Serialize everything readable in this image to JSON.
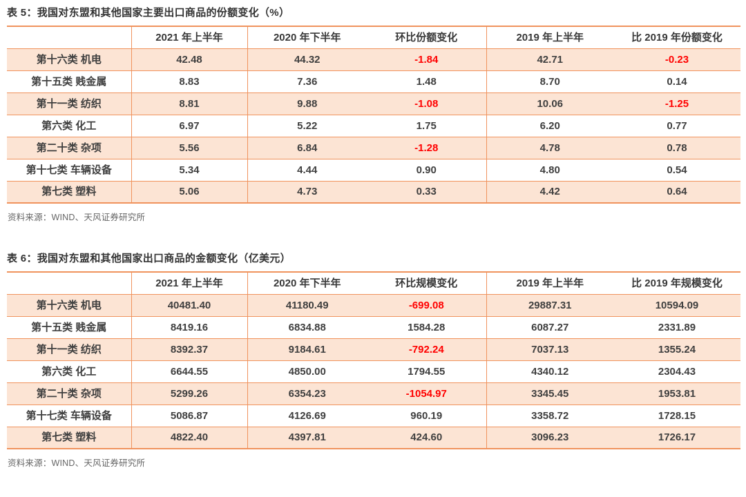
{
  "colors": {
    "table_border": "#F0925C",
    "row_shade": "#FCE4D4",
    "negative_value": "#FF0000",
    "text": "#3F3F3F"
  },
  "tables": [
    {
      "title": "表 5：我国对东盟和其他国家主要出口商品的份额变化（%）",
      "source": "资料来源：WIND、天风证券研究所",
      "columns": [
        "",
        "2021 年上半年",
        "2020 年下半年",
        "环比份额变化",
        "2019 年上半年",
        "比 2019 年份额变化"
      ],
      "rows": [
        {
          "label": "第十六类 机电",
          "values": [
            "42.48",
            "44.32",
            "-1.84",
            "42.71",
            "-0.23"
          ]
        },
        {
          "label": "第十五类 贱金属",
          "values": [
            "8.83",
            "7.36",
            "1.48",
            "8.70",
            "0.14"
          ]
        },
        {
          "label": "第十一类 纺织",
          "values": [
            "8.81",
            "9.88",
            "-1.08",
            "10.06",
            "-1.25"
          ]
        },
        {
          "label": "第六类 化工",
          "values": [
            "6.97",
            "5.22",
            "1.75",
            "6.20",
            "0.77"
          ]
        },
        {
          "label": "第二十类 杂项",
          "values": [
            "5.56",
            "6.84",
            "-1.28",
            "4.78",
            "0.78"
          ]
        },
        {
          "label": "第十七类 车辆设备",
          "values": [
            "5.34",
            "4.44",
            "0.90",
            "4.80",
            "0.54"
          ]
        },
        {
          "label": "第七类 塑料",
          "values": [
            "5.06",
            "4.73",
            "0.33",
            "4.42",
            "0.64"
          ]
        }
      ]
    },
    {
      "title": "表 6：我国对东盟和其他国家出口商品的金额变化（亿美元）",
      "source": "资料来源：WIND、天风证券研究所",
      "columns": [
        "",
        "2021 年上半年",
        "2020 年下半年",
        "环比规模变化",
        "2019 年上半年",
        "比 2019 年规模变化"
      ],
      "rows": [
        {
          "label": "第十六类 机电",
          "values": [
            "40481.40",
            "41180.49",
            "-699.08",
            "29887.31",
            "10594.09"
          ]
        },
        {
          "label": "第十五类 贱金属",
          "values": [
            "8419.16",
            "6834.88",
            "1584.28",
            "6087.27",
            "2331.89"
          ]
        },
        {
          "label": "第十一类 纺织",
          "values": [
            "8392.37",
            "9184.61",
            "-792.24",
            "7037.13",
            "1355.24"
          ]
        },
        {
          "label": "第六类 化工",
          "values": [
            "6644.55",
            "4850.00",
            "1794.55",
            "4340.12",
            "2304.43"
          ]
        },
        {
          "label": "第二十类 杂项",
          "values": [
            "5299.26",
            "6354.23",
            "-1054.97",
            "3345.45",
            "1953.81"
          ]
        },
        {
          "label": "第十七类 车辆设备",
          "values": [
            "5086.87",
            "4126.69",
            "960.19",
            "3358.72",
            "1728.15"
          ]
        },
        {
          "label": "第七类 塑料",
          "values": [
            "4822.40",
            "4397.81",
            "424.60",
            "3096.23",
            "1726.17"
          ]
        }
      ]
    }
  ]
}
